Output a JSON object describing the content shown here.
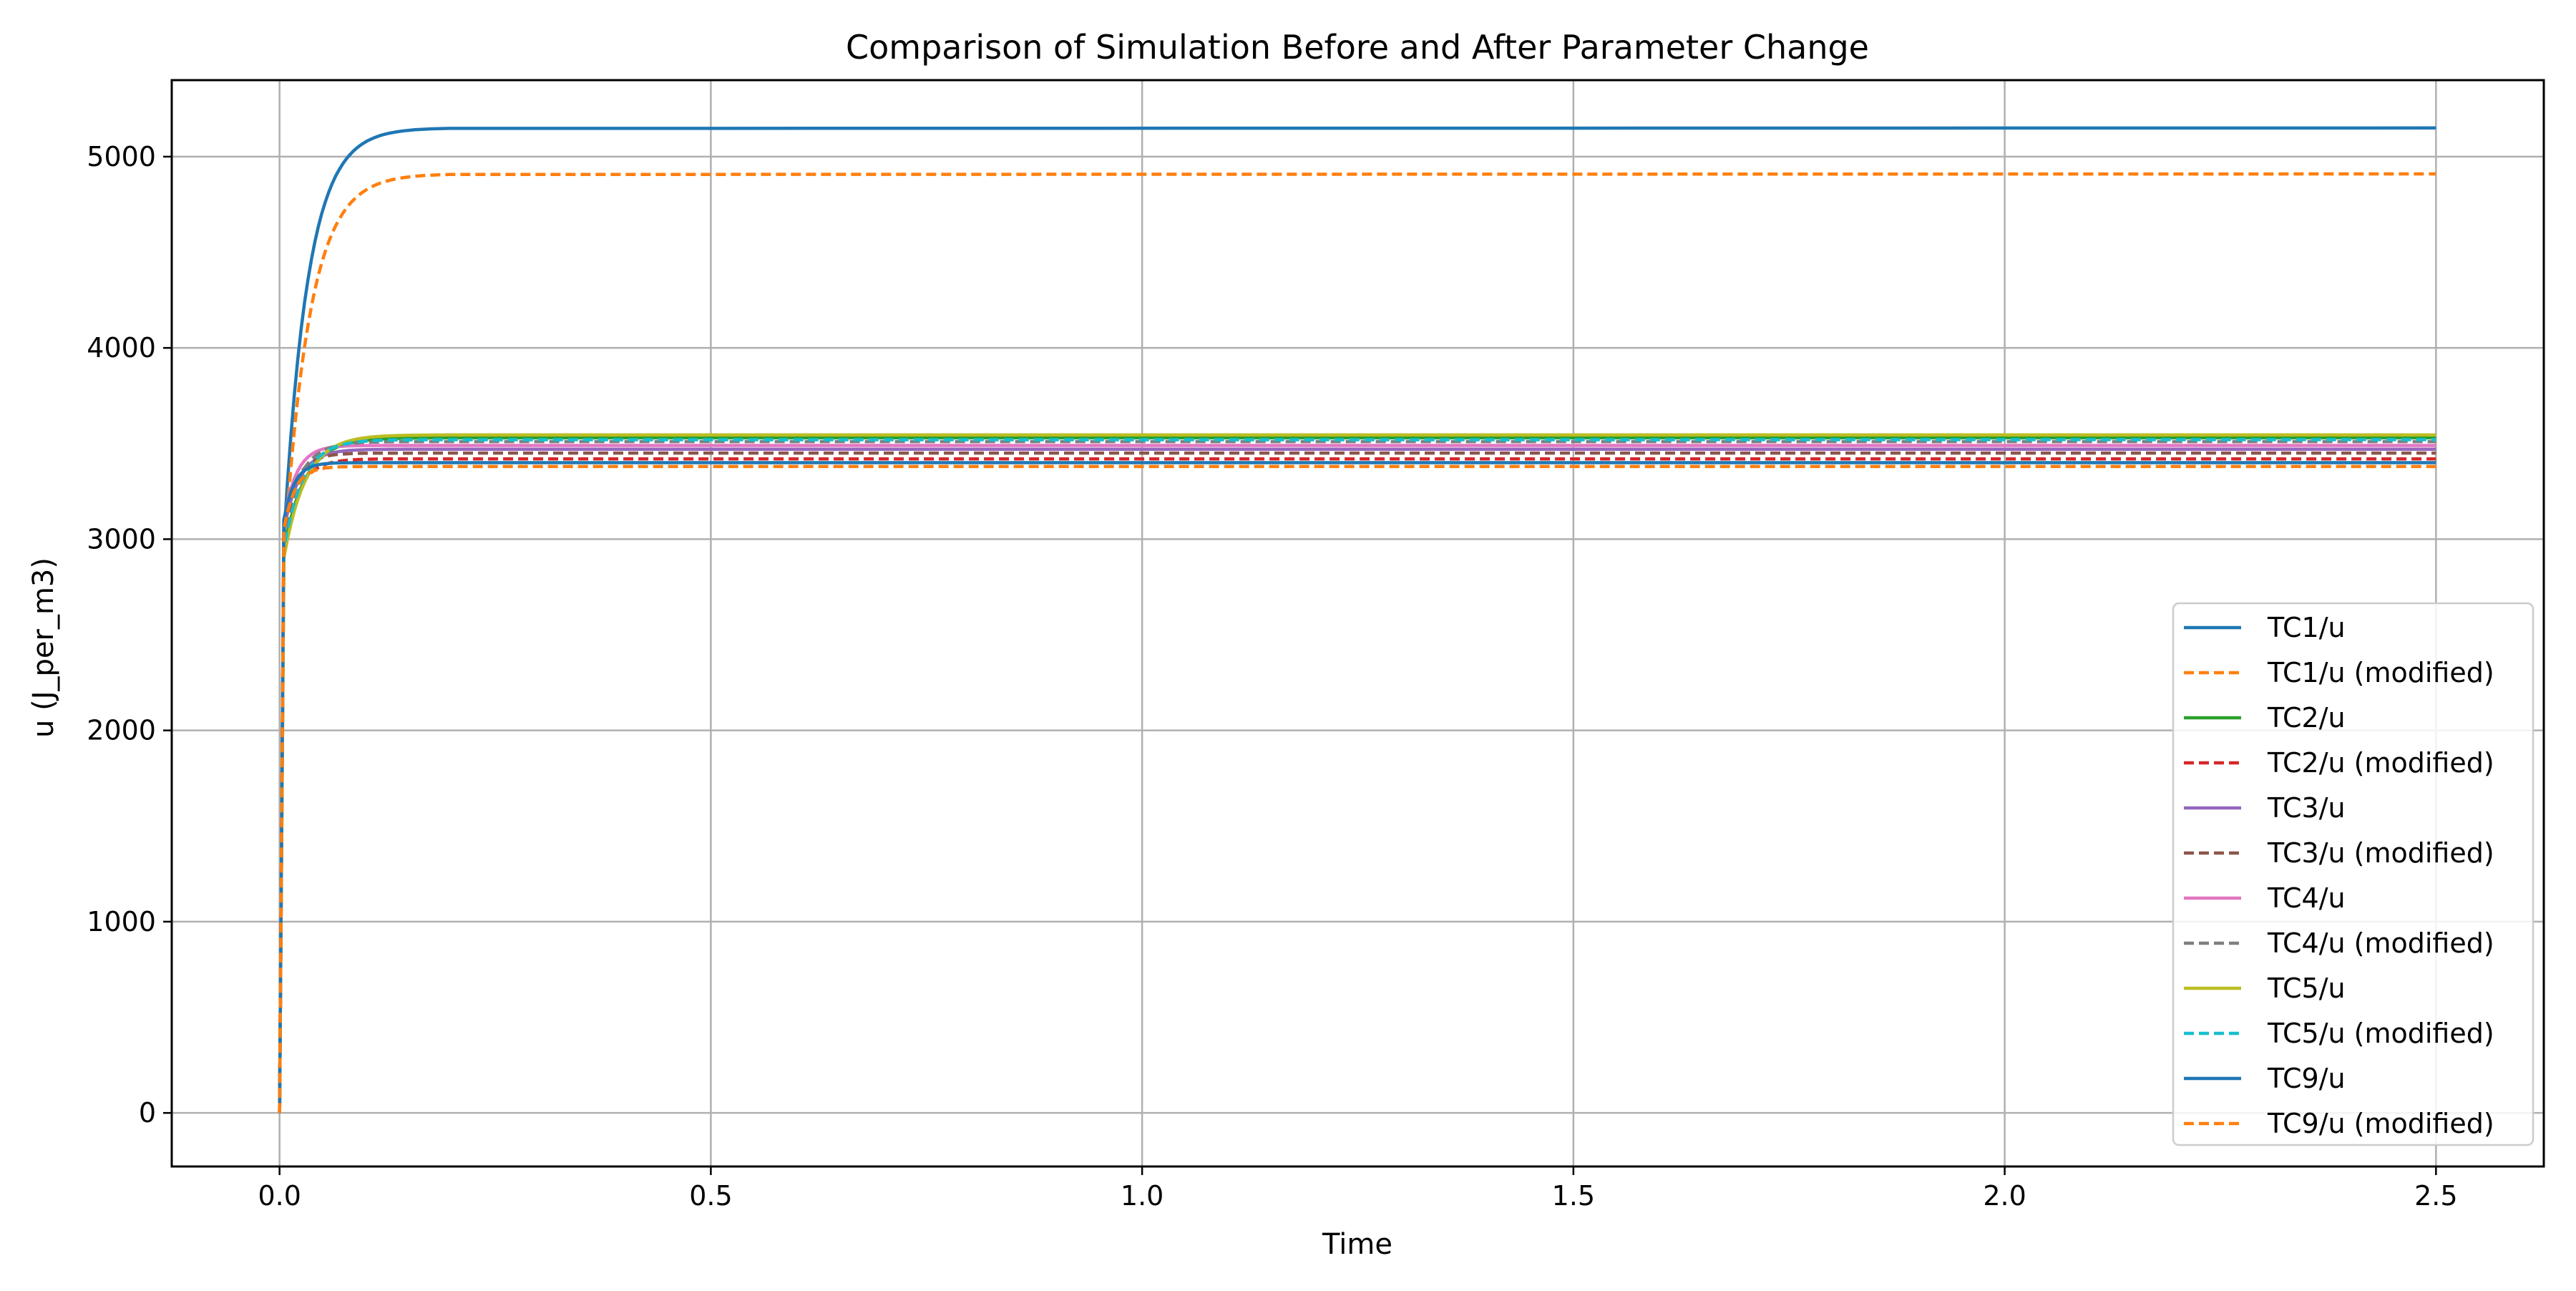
{
  "chart_data": {
    "type": "line",
    "title": "Comparison of Simulation Before and After Parameter Change",
    "xlabel": "Time",
    "ylabel": "u (J_per_m3)",
    "xlim": [
      -0.125,
      2.625
    ],
    "ylim": [
      -280,
      5400
    ],
    "xticks": [
      0.0,
      0.5,
      1.0,
      1.5,
      2.0,
      2.5
    ],
    "xtick_labels": [
      "0.0",
      "0.5",
      "1.0",
      "1.5",
      "2.0",
      "2.5"
    ],
    "yticks": [
      0,
      1000,
      2000,
      3000,
      4000,
      5000
    ],
    "ytick_labels": [
      "0",
      "1000",
      "2000",
      "3000",
      "4000",
      "5000"
    ],
    "grid": true,
    "legend_position": "lower-right",
    "series": [
      {
        "name": "TC1/u",
        "color": "#1f77b4",
        "style": "solid",
        "final": 5150,
        "start": 3000,
        "tau": 0.028
      },
      {
        "name": "TC1/u (modified)",
        "color": "#ff7f0e",
        "style": "dashed",
        "final": 4910,
        "start": 2900,
        "tau": 0.03
      },
      {
        "name": "TC2/u",
        "color": "#2ca02c",
        "style": "solid",
        "final": 3530,
        "start": 2950,
        "tau": 0.025
      },
      {
        "name": "TC2/u (modified)",
        "color": "#d62728",
        "style": "dashed",
        "final": 3420,
        "start": 3000,
        "tau": 0.018
      },
      {
        "name": "TC3/u",
        "color": "#9467bd",
        "style": "solid",
        "final": 3470,
        "start": 3050,
        "tau": 0.018
      },
      {
        "name": "TC3/u (modified)",
        "color": "#8c564b",
        "style": "dashed",
        "final": 3450,
        "start": 3100,
        "tau": 0.016
      },
      {
        "name": "TC4/u",
        "color": "#e377c2",
        "style": "solid",
        "final": 3490,
        "start": 3100,
        "tau": 0.015
      },
      {
        "name": "TC4/u (modified)",
        "color": "#7f7f7f",
        "style": "dashed",
        "final": 3510,
        "start": 3050,
        "tau": 0.02
      },
      {
        "name": "TC5/u",
        "color": "#bcbd22",
        "style": "solid",
        "final": 3545,
        "start": 2900,
        "tau": 0.025
      },
      {
        "name": "TC5/u (modified)",
        "color": "#17becf",
        "style": "dashed",
        "final": 3520,
        "start": 2950,
        "tau": 0.022
      },
      {
        "name": "TC9/u",
        "color": "#1f77b4",
        "style": "solid",
        "final": 3400,
        "start": 3100,
        "tau": 0.012
      },
      {
        "name": "TC9/u (modified)",
        "color": "#ff7f0e",
        "style": "dashed",
        "final": 3380,
        "start": 3050,
        "tau": 0.013
      }
    ]
  }
}
